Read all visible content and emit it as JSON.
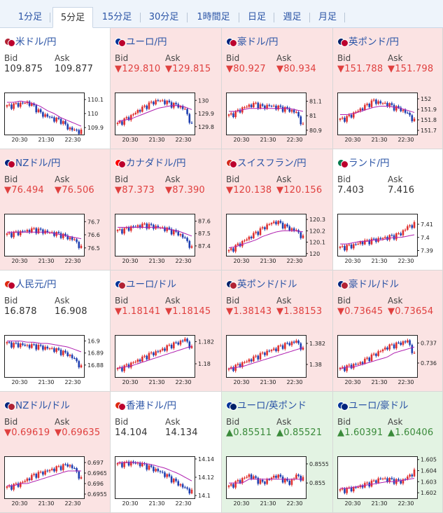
{
  "tabs": [
    {
      "label": "1分足",
      "active": false
    },
    {
      "label": "5分足",
      "active": true
    },
    {
      "label": "15分足",
      "active": false
    },
    {
      "label": "30分足",
      "active": false
    },
    {
      "label": "1時間足",
      "active": false
    },
    {
      "label": "日足",
      "active": false
    },
    {
      "label": "週足",
      "active": false
    },
    {
      "label": "月足",
      "active": false
    }
  ],
  "colors": {
    "down_bg": "#fbe3e3",
    "up_bg": "#e3f3e3",
    "down_text": "#e0403f",
    "up_text": "#3a8a3a",
    "candle_up": "#e0302f",
    "candle_down": "#1f3fb0",
    "ma_line": "#b020b0"
  },
  "labels": {
    "bid": "Bid",
    "ask": "Ask"
  },
  "pairs": [
    {
      "name": "米ドル/円",
      "dir": "neutral",
      "arrow": "",
      "bid": "109.875",
      "ask": "109.877",
      "flags": [
        "#b22234",
        "#bc002d"
      ],
      "icon": "usd-jpy-flag-icon",
      "chart_data": {
        "type": "candlestick",
        "x_ticks": [
          "20:30",
          "21:30",
          "22:30"
        ],
        "y_ticks": [
          "110.1",
          "110",
          "109.9"
        ],
        "y_range": [
          109.85,
          110.15
        ],
        "trend": [
          110.05,
          110.06,
          110.07,
          110.08,
          110.05,
          110.0,
          109.98,
          109.96,
          109.95,
          109.9,
          109.88,
          109.87
        ],
        "ma_trend": [
          110.08,
          110.08,
          110.09,
          110.08,
          110.07,
          110.05,
          110.02,
          110.0,
          109.97,
          109.95,
          109.93,
          109.91
        ]
      }
    },
    {
      "name": "ユーロ/円",
      "dir": "down",
      "arrow": "▼",
      "bid": "129.810",
      "ask": "129.815",
      "flags": [
        "#003399",
        "#bc002d"
      ],
      "icon": "eur-jpy-flag-icon",
      "chart_data": {
        "type": "candlestick",
        "x_ticks": [
          "20:30",
          "21:30",
          "22:30"
        ],
        "y_ticks": [
          "130",
          "129.9",
          "129.8"
        ],
        "y_range": [
          129.74,
          130.06
        ],
        "trend": [
          129.82,
          129.85,
          129.88,
          129.92,
          129.95,
          129.98,
          130.0,
          129.99,
          129.97,
          129.96,
          129.93,
          129.81
        ],
        "ma_trend": [
          129.84,
          129.85,
          129.86,
          129.88,
          129.9,
          129.92,
          129.94,
          129.95,
          129.96,
          129.96,
          129.95,
          129.93
        ]
      }
    },
    {
      "name": "豪ドル/円",
      "dir": "down",
      "arrow": "▼",
      "bid": "80.927",
      "ask": "80.934",
      "flags": [
        "#00247d",
        "#bc002d"
      ],
      "icon": "aud-jpy-flag-icon",
      "chart_data": {
        "type": "candlestick",
        "x_ticks": [
          "20:30",
          "21:30",
          "22:30"
        ],
        "y_ticks": [
          "81.1",
          "81",
          "80.9"
        ],
        "y_range": [
          80.87,
          81.16
        ],
        "trend": [
          81.0,
          81.02,
          81.05,
          81.07,
          81.08,
          81.06,
          81.07,
          81.06,
          81.05,
          81.04,
          81.02,
          80.93
        ],
        "ma_trend": [
          81.03,
          81.03,
          81.04,
          81.05,
          81.05,
          81.05,
          81.05,
          81.05,
          81.05,
          81.05,
          81.04,
          81.03
        ]
      }
    },
    {
      "name": "英ポンド/円",
      "dir": "down",
      "arrow": "▼",
      "bid": "151.788",
      "ask": "151.798",
      "flags": [
        "#012169",
        "#bc002d"
      ],
      "icon": "gbp-jpy-flag-icon",
      "chart_data": {
        "type": "candlestick",
        "x_ticks": [
          "20:30",
          "21:30",
          "22:30"
        ],
        "y_ticks": [
          "152",
          "151.9",
          "151.8",
          "151.7"
        ],
        "y_range": [
          151.66,
          152.06
        ],
        "trend": [
          151.8,
          151.82,
          151.86,
          151.9,
          151.94,
          151.98,
          151.96,
          151.95,
          151.92,
          151.9,
          151.86,
          151.79
        ],
        "ma_trend": [
          151.85,
          151.85,
          151.86,
          151.88,
          151.9,
          151.92,
          151.93,
          151.93,
          151.92,
          151.91,
          151.89,
          151.87
        ]
      }
    },
    {
      "name": "NZドル/円",
      "dir": "down",
      "arrow": "▼",
      "bid": "76.494",
      "ask": "76.506",
      "flags": [
        "#00247d",
        "#bc002d"
      ],
      "icon": "nzd-jpy-flag-icon",
      "chart_data": {
        "type": "candlestick",
        "x_ticks": [
          "20:30",
          "21:30",
          "22:30"
        ],
        "y_ticks": [
          "76.7",
          "76.6",
          "76.5"
        ],
        "y_range": [
          76.44,
          76.76
        ],
        "trend": [
          76.6,
          76.61,
          76.62,
          76.63,
          76.64,
          76.63,
          76.62,
          76.61,
          76.6,
          76.58,
          76.56,
          76.5
        ],
        "ma_trend": [
          76.62,
          76.62,
          76.62,
          76.62,
          76.62,
          76.62,
          76.62,
          76.61,
          76.6,
          76.59,
          76.58,
          76.57
        ]
      }
    },
    {
      "name": "カナダドル/円",
      "dir": "down",
      "arrow": "▼",
      "bid": "87.373",
      "ask": "87.390",
      "flags": [
        "#ff0000",
        "#bc002d"
      ],
      "icon": "cad-jpy-flag-icon",
      "chart_data": {
        "type": "candlestick",
        "x_ticks": [
          "20:30",
          "21:30",
          "22:30"
        ],
        "y_ticks": [
          "87.6",
          "87.5",
          "87.4"
        ],
        "y_range": [
          87.32,
          87.66
        ],
        "trend": [
          87.52,
          87.53,
          87.55,
          87.56,
          87.57,
          87.56,
          87.55,
          87.54,
          87.52,
          87.5,
          87.46,
          87.38
        ],
        "ma_trend": [
          87.55,
          87.55,
          87.55,
          87.55,
          87.55,
          87.55,
          87.55,
          87.54,
          87.53,
          87.52,
          87.5,
          87.48
        ]
      }
    },
    {
      "name": "スイスフラン/円",
      "dir": "down",
      "arrow": "▼",
      "bid": "120.138",
      "ask": "120.156",
      "flags": [
        "#d52b1e",
        "#bc002d"
      ],
      "icon": "chf-jpy-flag-icon",
      "chart_data": {
        "type": "candlestick",
        "x_ticks": [
          "20:30",
          "21:30",
          "22:30"
        ],
        "y_ticks": [
          "120.3",
          "120.2",
          "120.1",
          "120"
        ],
        "y_range": [
          119.98,
          120.35
        ],
        "trend": [
          120.02,
          120.06,
          120.1,
          120.14,
          120.18,
          120.22,
          120.26,
          120.28,
          120.25,
          120.22,
          120.2,
          120.14
        ],
        "ma_trend": [
          120.05,
          120.06,
          120.08,
          120.1,
          120.12,
          120.15,
          120.17,
          120.19,
          120.2,
          120.2,
          120.2,
          120.19
        ]
      }
    },
    {
      "name": "ランド/円",
      "dir": "neutral",
      "arrow": "",
      "bid": "7.403",
      "ask": "7.416",
      "flags": [
        "#007a4d",
        "#bc002d"
      ],
      "icon": "zar-jpy-flag-icon",
      "chart_data": {
        "type": "candlestick",
        "x_ticks": [
          "20:30",
          "21:30",
          "22:30"
        ],
        "y_ticks": [
          "7.41",
          "7.4",
          "7.39"
        ],
        "y_range": [
          7.386,
          7.418
        ],
        "trend": [
          7.392,
          7.393,
          7.394,
          7.396,
          7.397,
          7.398,
          7.399,
          7.4,
          7.401,
          7.403,
          7.408,
          7.41
        ],
        "ma_trend": [
          7.395,
          7.395,
          7.396,
          7.397,
          7.397,
          7.398,
          7.398,
          7.399,
          7.4,
          7.4,
          7.401,
          7.402
        ]
      }
    },
    {
      "name": "人民元/円",
      "dir": "neutral",
      "arrow": "",
      "bid": "16.878",
      "ask": "16.908",
      "flags": [
        "#de2910",
        "#bc002d"
      ],
      "icon": "cny-jpy-flag-icon",
      "chart_data": {
        "type": "candlestick",
        "x_ticks": [
          "20:30",
          "21:30",
          "22:30"
        ],
        "y_ticks": [
          "16.9",
          "16.89",
          "16.88"
        ],
        "y_range": [
          16.87,
          16.905
        ],
        "trend": [
          16.898,
          16.897,
          16.897,
          16.896,
          16.896,
          16.895,
          16.894,
          16.893,
          16.891,
          16.889,
          16.885,
          16.878
        ],
        "ma_trend": [
          16.9,
          16.9,
          16.9,
          16.899,
          16.899,
          16.898,
          16.898,
          16.897,
          16.896,
          16.895,
          16.893,
          16.891
        ]
      }
    },
    {
      "name": "ユーロ/ドル",
      "dir": "down",
      "arrow": "▼",
      "bid": "1.18141",
      "ask": "1.18145",
      "flags": [
        "#003399",
        "#b22234"
      ],
      "icon": "eur-usd-flag-icon",
      "chart_data": {
        "type": "candlestick",
        "x_ticks": [
          "20:30",
          "21:30",
          "22:30"
        ],
        "y_ticks": [
          "1.182",
          "1.18"
        ],
        "y_range": [
          1.1788,
          1.1826
        ],
        "trend": [
          1.1795,
          1.1797,
          1.18,
          1.1803,
          1.1806,
          1.1809,
          1.1811,
          1.1814,
          1.1817,
          1.1819,
          1.1822,
          1.1814
        ],
        "ma_trend": [
          1.1796,
          1.1797,
          1.1798,
          1.18,
          1.1802,
          1.1804,
          1.1806,
          1.1808,
          1.181,
          1.1812,
          1.1814,
          1.1816
        ]
      }
    },
    {
      "name": "英ポンド/ドル",
      "dir": "down",
      "arrow": "▼",
      "bid": "1.38143",
      "ask": "1.38153",
      "flags": [
        "#012169",
        "#b22234"
      ],
      "icon": "gbp-usd-flag-icon",
      "chart_data": {
        "type": "candlestick",
        "x_ticks": [
          "20:30",
          "21:30",
          "22:30"
        ],
        "y_ticks": [
          "1.382",
          "1.38"
        ],
        "y_range": [
          1.3788,
          1.3828
        ],
        "trend": [
          1.3795,
          1.3798,
          1.3801,
          1.3804,
          1.3807,
          1.381,
          1.3813,
          1.3815,
          1.3818,
          1.382,
          1.3822,
          1.3814
        ],
        "ma_trend": [
          1.3796,
          1.3797,
          1.3798,
          1.38,
          1.3802,
          1.3804,
          1.3806,
          1.3808,
          1.381,
          1.3812,
          1.3814,
          1.3816
        ]
      }
    },
    {
      "name": "豪ドル/ドル",
      "dir": "down",
      "arrow": "▼",
      "bid": "0.73645",
      "ask": "0.73654",
      "flags": [
        "#00247d",
        "#b22234"
      ],
      "icon": "aud-usd-flag-icon",
      "chart_data": {
        "type": "candlestick",
        "x_ticks": [
          "20:30",
          "21:30",
          "22:30"
        ],
        "y_ticks": [
          "0.737",
          "0.736"
        ],
        "y_range": [
          0.7353,
          0.7374
        ],
        "trend": [
          0.7357,
          0.7358,
          0.7359,
          0.736,
          0.7362,
          0.7364,
          0.7366,
          0.7368,
          0.7369,
          0.737,
          0.7371,
          0.7364
        ],
        "ma_trend": [
          0.7357,
          0.7358,
          0.7358,
          0.7359,
          0.736,
          0.7361,
          0.7362,
          0.7363,
          0.7365,
          0.7366,
          0.7367,
          0.7368
        ]
      }
    },
    {
      "name": "NZドル/ドル",
      "dir": "down",
      "arrow": "▼",
      "bid": "0.69619",
      "ask": "0.69635",
      "flags": [
        "#00247d",
        "#b22234"
      ],
      "icon": "nzd-usd-flag-icon",
      "chart_data": {
        "type": "candlestick",
        "x_ticks": [
          "20:30",
          "21:30",
          "22:30"
        ],
        "y_ticks": [
          "0.697",
          "0.6965",
          "0.696",
          "0.6955"
        ],
        "y_range": [
          0.6953,
          0.6973
        ],
        "trend": [
          0.6958,
          0.6959,
          0.696,
          0.6962,
          0.6964,
          0.6965,
          0.6966,
          0.6967,
          0.6968,
          0.6969,
          0.6967,
          0.6962
        ],
        "ma_trend": [
          0.6959,
          0.6959,
          0.696,
          0.696,
          0.6961,
          0.6962,
          0.6963,
          0.6964,
          0.6965,
          0.6966,
          0.6966,
          0.6966
        ]
      }
    },
    {
      "name": "香港ドル/円",
      "dir": "neutral",
      "arrow": "",
      "bid": "14.104",
      "ask": "14.134",
      "flags": [
        "#de2910",
        "#bc002d"
      ],
      "icon": "hkd-jpy-flag-icon",
      "chart_data": {
        "type": "candlestick",
        "x_ticks": [
          "20:30",
          "21:30",
          "22:30"
        ],
        "y_ticks": [
          "14.14",
          "14.12",
          "14.1"
        ],
        "y_range": [
          14.097,
          14.143
        ],
        "trend": [
          14.134,
          14.135,
          14.136,
          14.135,
          14.133,
          14.13,
          14.127,
          14.123,
          14.118,
          14.113,
          14.108,
          14.104
        ],
        "ma_trend": [
          14.136,
          14.136,
          14.136,
          14.136,
          14.135,
          14.134,
          14.132,
          14.13,
          14.127,
          14.124,
          14.12,
          14.116
        ]
      }
    },
    {
      "name": "ユーロ/英ポンド",
      "dir": "up",
      "arrow": "▲",
      "bid": "0.85511",
      "ask": "0.85521",
      "flags": [
        "#003399",
        "#012169"
      ],
      "icon": "eur-gbp-flag-icon",
      "chart_data": {
        "type": "candlestick",
        "x_ticks": [
          "20:30",
          "21:30",
          "22:30"
        ],
        "y_ticks": [
          "0.8555",
          "0.855"
        ],
        "y_range": [
          0.8546,
          0.8557
        ],
        "trend": [
          0.8549,
          0.855,
          0.8551,
          0.8552,
          0.8551,
          0.855,
          0.8551,
          0.8552,
          0.8551,
          0.855,
          0.8552,
          0.8551
        ],
        "ma_trend": [
          0.855,
          0.855,
          0.855,
          0.8551,
          0.8551,
          0.8551,
          0.8551,
          0.8551,
          0.8551,
          0.8551,
          0.8551,
          0.8551
        ]
      }
    },
    {
      "name": "ユーロ/豪ドル",
      "dir": "up",
      "arrow": "▲",
      "bid": "1.60391",
      "ask": "1.60406",
      "flags": [
        "#003399",
        "#00247d"
      ],
      "icon": "eur-aud-flag-icon",
      "chart_data": {
        "type": "candlestick",
        "x_ticks": [
          "20:30",
          "21:30",
          "22:30"
        ],
        "y_ticks": [
          "1.605",
          "1.604",
          "1.603",
          "1.602"
        ],
        "y_range": [
          1.6015,
          1.6053
        ],
        "trend": [
          1.6022,
          1.6023,
          1.6024,
          1.6026,
          1.6028,
          1.603,
          1.6033,
          1.6032,
          1.6031,
          1.603,
          1.6034,
          1.6039
        ],
        "ma_trend": [
          1.6024,
          1.6024,
          1.6025,
          1.6026,
          1.6027,
          1.6028,
          1.6029,
          1.603,
          1.603,
          1.6031,
          1.6032,
          1.6033
        ]
      }
    }
  ]
}
